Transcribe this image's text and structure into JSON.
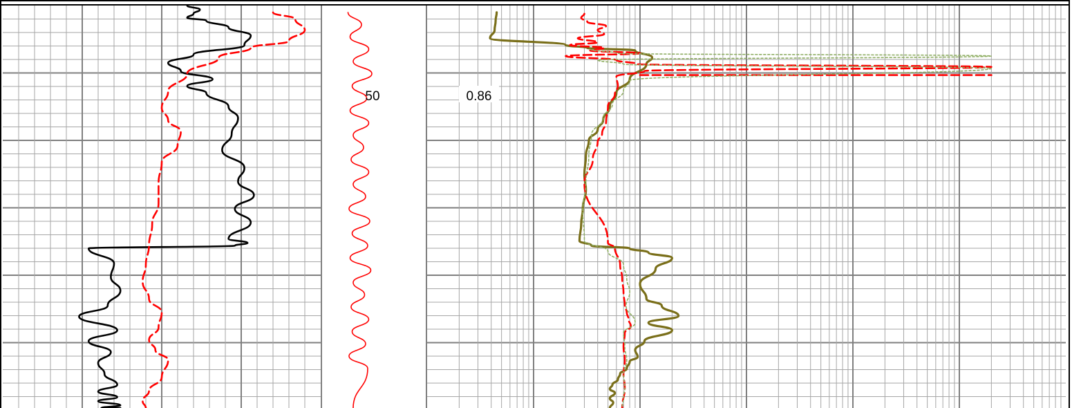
{
  "chart_data": {
    "type": "line",
    "title": "",
    "depth_label": "50",
    "scale_label": "0.86",
    "colors": {
      "background": "#ffffff",
      "grid_minor": "#a6a6a6",
      "grid_major": "#7f7f7f",
      "border": "#000000",
      "black_curve": "#000000",
      "red_curve": "#ff0000",
      "olive_curve": "#7a6f1a",
      "green_dotted": "#8fae63"
    },
    "tracks": [
      {
        "name": "",
        "scale": "linear",
        "series": [
          {
            "name": "",
            "style": "solid",
            "color": "black_curve",
            "x": [
              0.58,
              0.62,
              0.6,
              0.58,
              0.64,
              0.71,
              0.78,
              0.76,
              0.6,
              0.52,
              0.56,
              0.66,
              0.58,
              0.64,
              0.71,
              0.74,
              0.72,
              0.69,
              0.76,
              0.74,
              0.79,
              0.73,
              0.78,
              0.71,
              0.77,
              0.73,
              0.27,
              0.35,
              0.34,
              0.37,
              0.33,
              0.24,
              0.36,
              0.27,
              0.34,
              0.3,
              0.32,
              0.36,
              0.3,
              0.36,
              0.3,
              0.37,
              0.31,
              0.37
            ],
            "depth": [
              0,
              6,
              12,
              18,
              22,
              32,
              44,
              58,
              72,
              84,
              96,
              108,
              118,
              128,
              148,
              165,
              188,
              212,
              238,
              258,
              278,
              298,
              318,
              342,
              348,
              352,
              356,
              378,
              398,
              418,
              440,
              456,
              476,
              492,
              508,
              524,
              540,
              556,
              566,
              574,
              580,
              586,
              590,
              590
            ]
          },
          {
            "name": "",
            "style": "dashed",
            "color": "red_curve",
            "x": [
              0.85,
              0.92,
              0.95,
              0.9,
              0.78,
              0.68,
              0.58,
              0.52,
              0.5,
              0.52,
              0.56,
              0.55,
              0.5,
              0.49,
              0.49,
              0.47,
              0.46,
              0.45,
              0.44,
              0.46,
              0.5,
              0.49,
              0.46,
              0.48,
              0.52,
              0.5,
              0.46,
              0.44,
              0.45
            ],
            "depth": [
              10,
              20,
              36,
              52,
              62,
              76,
              100,
              126,
              150,
              168,
              185,
              205,
              230,
              260,
              290,
              320,
              352,
              380,
              405,
              430,
              450,
              472,
              490,
              505,
              520,
              545,
              565,
              580,
              590
            ]
          }
        ]
      },
      {
        "name": "",
        "scale": "linear",
        "series": [
          {
            "name": "",
            "style": "wavy",
            "color": "red_curve",
            "x": [
              0.25,
              0.38,
              0.27,
              0.45,
              0.3,
              0.48,
              0.29,
              0.43,
              0.27,
              0.45,
              0.3,
              0.4,
              0.28,
              0.45,
              0.3,
              0.42,
              0.26,
              0.46,
              0.29,
              0.44,
              0.27,
              0.47,
              0.3,
              0.41,
              0.28,
              0.45,
              0.29,
              0.42,
              0.26,
              0.44,
              0.3
            ],
            "depth": [
              10,
              28,
              46,
              64,
              82,
              100,
              118,
              136,
              154,
              172,
              190,
              208,
              226,
              244,
              262,
              280,
              298,
              316,
              334,
              352,
              370,
              388,
              406,
              424,
              442,
              460,
              478,
              496,
              514,
              532,
              590
            ]
          }
        ]
      },
      {
        "name": "",
        "scale": "log",
        "series": [
          {
            "name": "",
            "style": "solid-thick",
            "color": "olive_curve",
            "x": [
              4.5,
              4.4,
              4.3,
              3.9,
              20,
              32,
              90,
              130,
              115,
              80,
              60,
              52,
              45,
              40,
              33,
              31,
              30,
              31,
              29,
              28,
              27,
              35,
              80,
              120,
              200,
              140,
              100,
              115,
              160,
              230,
              120,
              200,
              110,
              90,
              95,
              80,
              75,
              65,
              62,
              55,
              52,
              58,
              52,
              56,
              52
            ],
            "depth": [
              10,
              22,
              36,
              48,
              58,
              62,
              66,
              76,
              86,
              108,
              128,
              148,
              168,
              182,
              198,
              220,
              248,
              270,
              298,
              320,
              345,
              352,
              356,
              362,
              370,
              386,
              408,
              430,
              440,
              455,
              465,
              476,
              492,
              505,
              515,
              522,
              532,
              540,
              548,
              556,
              562,
              568,
              576,
              582,
              590
            ]
          },
          {
            "name": "",
            "style": "dashed",
            "color": "red_curve",
            "x": [
              30,
              28,
              32,
              48,
              40,
              46,
              26,
              40,
              22,
              46,
              34,
              100,
              20,
              60,
              95,
              200000,
              110,
              60,
              62,
              58,
              50,
              48,
              44,
              40,
              36,
              30,
              50,
              58,
              65,
              68,
              70,
              72,
              75,
              78,
              82,
              72,
              70,
              72,
              70,
              72,
              68
            ],
            "depth": [
              12,
              18,
              24,
              30,
              36,
              42,
              48,
              54,
              58,
              62,
              66,
              70,
              74,
              80,
              86,
              90,
              96,
              104,
              118,
              130,
              148,
              170,
              188,
              200,
              225,
              260,
              348,
              355,
              380,
              400,
              420,
              440,
              450,
              460,
              470,
              480,
              500,
              520,
              540,
              560,
              590
            ]
          },
          {
            "name": "",
            "style": "dashed",
            "color": "red_curve",
            "x": [
              100,
              200000
            ],
            "depth": [
              102,
              102
            ]
          },
          {
            "name": "",
            "style": "dotted",
            "color": "green_dotted",
            "x": [
              34,
              60,
              200000,
              40,
              70,
              200000,
              80,
              70,
              55,
              45,
              35,
              33,
              31,
              29,
              30,
              50,
              70,
              75,
              80,
              74,
              90,
              70,
              72,
              75,
              70,
              72,
              70,
              68
            ],
            "depth": [
              64,
              70,
              74,
              80,
              86,
              92,
              110,
              125,
              145,
              165,
              190,
              220,
              260,
              300,
              345,
              360,
              380,
              400,
              420,
              440,
              465,
              480,
              500,
              520,
              540,
              560,
              575,
              590
            ]
          }
        ]
      }
    ]
  }
}
